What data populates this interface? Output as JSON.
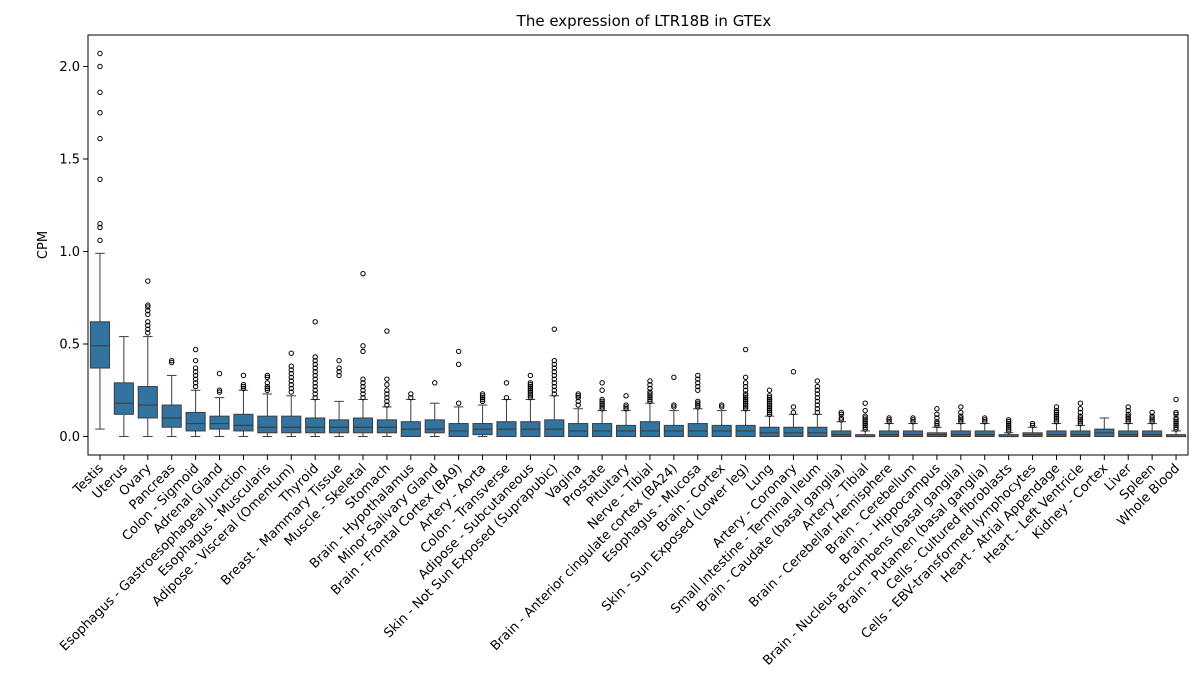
{
  "chart_data": {
    "type": "box",
    "title": "The expression of LTR18B in GTEx",
    "xlabel": "",
    "ylabel": "CPM",
    "ylim": [
      -0.1,
      2.17
    ],
    "yticks": [
      0.0,
      0.5,
      1.0,
      1.5,
      2.0
    ],
    "ytick_labels": [
      "0.0",
      "0.5",
      "1.0",
      "1.5",
      "2.0"
    ],
    "box_color": "#3274a1",
    "categories": [
      "Testis",
      "Uterus",
      "Ovary",
      "Pancreas",
      "Colon - Sigmoid",
      "Adrenal Gland",
      "Esophagus - Gastroesophageal Junction",
      "Esophagus - Muscularis",
      "Adipose - Visceral (Omentum)",
      "Thyroid",
      "Breast - Mammary Tissue",
      "Muscle - Skeletal",
      "Stomach",
      "Brain - Hypothalamus",
      "Minor Salivary Gland",
      "Brain - Frontal Cortex (BA9)",
      "Artery - Aorta",
      "Colon - Transverse",
      "Adipose - Subcutaneous",
      "Skin - Not Sun Exposed (Suprapubic)",
      "Vagina",
      "Prostate",
      "Pituitary",
      "Nerve - Tibial",
      "Brain - Anterior cingulate cortex (BA24)",
      "Esophagus - Mucosa",
      "Brain - Cortex",
      "Skin - Sun Exposed (Lower leg)",
      "Lung",
      "Artery - Coronary",
      "Small Intestine - Terminal Ileum",
      "Brain - Caudate (basal ganglia)",
      "Artery - Tibial",
      "Brain - Cerebellar Hemisphere",
      "Brain - Cerebellum",
      "Brain - Hippocampus",
      "Brain - Nucleus accumbens (basal ganglia)",
      "Brain - Putamen (basal ganglia)",
      "Cells - Cultured fibroblasts",
      "Cells - EBV-transformed lymphocytes",
      "Heart - Atrial Appendage",
      "Heart - Left Ventricle",
      "Kidney - Cortex",
      "Liver",
      "Spleen",
      "Whole Blood"
    ],
    "boxes": [
      {
        "q1": 0.37,
        "median": 0.49,
        "q3": 0.62,
        "whislo": 0.04,
        "whishi": 0.99,
        "fliers": [
          1.06,
          1.13,
          1.15,
          1.39,
          1.61,
          1.75,
          1.86,
          2.0,
          2.07
        ]
      },
      {
        "q1": 0.12,
        "median": 0.18,
        "q3": 0.29,
        "whislo": 0.0,
        "whishi": 0.54,
        "fliers": []
      },
      {
        "q1": 0.1,
        "median": 0.17,
        "q3": 0.27,
        "whislo": 0.0,
        "whishi": 0.54,
        "fliers": [
          0.56,
          0.58,
          0.6,
          0.62,
          0.66,
          0.68,
          0.7,
          0.71,
          0.84
        ]
      },
      {
        "q1": 0.05,
        "median": 0.1,
        "q3": 0.17,
        "whislo": 0.0,
        "whishi": 0.33,
        "fliers": [
          0.4,
          0.41
        ]
      },
      {
        "q1": 0.03,
        "median": 0.07,
        "q3": 0.13,
        "whislo": 0.0,
        "whishi": 0.25,
        "fliers": [
          0.27,
          0.29,
          0.31,
          0.33,
          0.35,
          0.37,
          0.41,
          0.47
        ]
      },
      {
        "q1": 0.04,
        "median": 0.07,
        "q3": 0.11,
        "whislo": 0.0,
        "whishi": 0.21,
        "fliers": [
          0.24,
          0.25,
          0.34
        ]
      },
      {
        "q1": 0.03,
        "median": 0.06,
        "q3": 0.12,
        "whislo": 0.0,
        "whishi": 0.25,
        "fliers": [
          0.26,
          0.27,
          0.28,
          0.33
        ]
      },
      {
        "q1": 0.02,
        "median": 0.05,
        "q3": 0.11,
        "whislo": 0.0,
        "whishi": 0.23,
        "fliers": [
          0.25,
          0.26,
          0.27,
          0.29,
          0.32,
          0.33
        ]
      },
      {
        "q1": 0.02,
        "median": 0.05,
        "q3": 0.11,
        "whislo": 0.0,
        "whishi": 0.22,
        "fliers": [
          0.24,
          0.26,
          0.28,
          0.3,
          0.32,
          0.34,
          0.36,
          0.38,
          0.45
        ]
      },
      {
        "q1": 0.02,
        "median": 0.05,
        "q3": 0.1,
        "whislo": 0.0,
        "whishi": 0.2,
        "fliers": [
          0.21,
          0.23,
          0.25,
          0.27,
          0.29,
          0.31,
          0.33,
          0.35,
          0.37,
          0.39,
          0.41,
          0.43,
          0.62
        ]
      },
      {
        "q1": 0.02,
        "median": 0.05,
        "q3": 0.09,
        "whislo": 0.0,
        "whishi": 0.19,
        "fliers": [
          0.33,
          0.35,
          0.37,
          0.41
        ]
      },
      {
        "q1": 0.02,
        "median": 0.05,
        "q3": 0.1,
        "whislo": 0.0,
        "whishi": 0.2,
        "fliers": [
          0.21,
          0.23,
          0.25,
          0.27,
          0.29,
          0.31,
          0.46,
          0.49,
          0.88
        ]
      },
      {
        "q1": 0.02,
        "median": 0.05,
        "q3": 0.09,
        "whislo": 0.0,
        "whishi": 0.16,
        "fliers": [
          0.17,
          0.19,
          0.21,
          0.23,
          0.25,
          0.28,
          0.31,
          0.57
        ]
      },
      {
        "q1": 0.0,
        "median": 0.04,
        "q3": 0.08,
        "whislo": 0.0,
        "whishi": 0.2,
        "fliers": [
          0.21,
          0.23
        ]
      },
      {
        "q1": 0.02,
        "median": 0.04,
        "q3": 0.09,
        "whislo": 0.0,
        "whishi": 0.18,
        "fliers": [
          0.29
        ]
      },
      {
        "q1": 0.0,
        "median": 0.03,
        "q3": 0.07,
        "whislo": 0.0,
        "whishi": 0.16,
        "fliers": [
          0.18,
          0.39,
          0.46
        ]
      },
      {
        "q1": 0.01,
        "median": 0.04,
        "q3": 0.07,
        "whislo": 0.0,
        "whishi": 0.17,
        "fliers": [
          0.19,
          0.2,
          0.21,
          0.22,
          0.23
        ]
      },
      {
        "q1": 0.0,
        "median": 0.04,
        "q3": 0.08,
        "whislo": 0.0,
        "whishi": 0.2,
        "fliers": [
          0.21,
          0.29
        ]
      },
      {
        "q1": 0.0,
        "median": 0.04,
        "q3": 0.08,
        "whislo": 0.0,
        "whishi": 0.2,
        "fliers": [
          0.21,
          0.22,
          0.23,
          0.24,
          0.25,
          0.26,
          0.27,
          0.28,
          0.29,
          0.33
        ]
      },
      {
        "q1": 0.0,
        "median": 0.04,
        "q3": 0.09,
        "whislo": 0.0,
        "whishi": 0.22,
        "fliers": [
          0.23,
          0.25,
          0.27,
          0.29,
          0.31,
          0.33,
          0.35,
          0.37,
          0.39,
          0.41,
          0.58
        ]
      },
      {
        "q1": 0.0,
        "median": 0.03,
        "q3": 0.07,
        "whislo": 0.0,
        "whishi": 0.15,
        "fliers": [
          0.17,
          0.19,
          0.21,
          0.22,
          0.23
        ]
      },
      {
        "q1": 0.0,
        "median": 0.03,
        "q3": 0.07,
        "whislo": 0.0,
        "whishi": 0.14,
        "fliers": [
          0.15,
          0.16,
          0.17,
          0.18,
          0.19,
          0.2,
          0.25,
          0.29
        ]
      },
      {
        "q1": 0.0,
        "median": 0.03,
        "q3": 0.06,
        "whislo": 0.0,
        "whishi": 0.14,
        "fliers": [
          0.15,
          0.16,
          0.17,
          0.22
        ]
      },
      {
        "q1": 0.0,
        "median": 0.03,
        "q3": 0.08,
        "whislo": 0.0,
        "whishi": 0.18,
        "fliers": [
          0.19,
          0.2,
          0.21,
          0.22,
          0.23,
          0.24,
          0.26,
          0.28,
          0.3
        ]
      },
      {
        "q1": 0.0,
        "median": 0.03,
        "q3": 0.06,
        "whislo": 0.0,
        "whishi": 0.14,
        "fliers": [
          0.16,
          0.17,
          0.32
        ]
      },
      {
        "q1": 0.0,
        "median": 0.03,
        "q3": 0.07,
        "whislo": 0.0,
        "whishi": 0.15,
        "fliers": [
          0.16,
          0.17,
          0.18,
          0.19,
          0.25,
          0.27,
          0.29,
          0.31,
          0.33
        ]
      },
      {
        "q1": 0.0,
        "median": 0.03,
        "q3": 0.06,
        "whislo": 0.0,
        "whishi": 0.14,
        "fliers": [
          0.16,
          0.17
        ]
      },
      {
        "q1": 0.0,
        "median": 0.03,
        "q3": 0.06,
        "whislo": 0.0,
        "whishi": 0.14,
        "fliers": [
          0.15,
          0.16,
          0.17,
          0.18,
          0.19,
          0.2,
          0.21,
          0.22,
          0.23,
          0.25,
          0.27,
          0.29,
          0.32,
          0.47
        ]
      },
      {
        "q1": 0.0,
        "median": 0.02,
        "q3": 0.05,
        "whislo": 0.0,
        "whishi": 0.11,
        "fliers": [
          0.12,
          0.13,
          0.14,
          0.15,
          0.16,
          0.17,
          0.18,
          0.19,
          0.2,
          0.21,
          0.22,
          0.25
        ]
      },
      {
        "q1": 0.0,
        "median": 0.02,
        "q3": 0.05,
        "whislo": 0.0,
        "whishi": 0.12,
        "fliers": [
          0.13,
          0.16,
          0.35
        ]
      },
      {
        "q1": 0.0,
        "median": 0.02,
        "q3": 0.05,
        "whislo": 0.0,
        "whishi": 0.12,
        "fliers": [
          0.13,
          0.15,
          0.17,
          0.19,
          0.21,
          0.23,
          0.25,
          0.27,
          0.3
        ]
      },
      {
        "q1": 0.0,
        "median": 0.01,
        "q3": 0.03,
        "whislo": 0.0,
        "whishi": 0.08,
        "fliers": [
          0.09,
          0.1,
          0.12,
          0.13
        ]
      },
      {
        "q1": 0.0,
        "median": 0.0,
        "q3": 0.01,
        "whislo": 0.0,
        "whishi": 0.03,
        "fliers": [
          0.04,
          0.05,
          0.06,
          0.07,
          0.08,
          0.09,
          0.1,
          0.11,
          0.14,
          0.18
        ]
      },
      {
        "q1": 0.0,
        "median": 0.01,
        "q3": 0.03,
        "whislo": 0.0,
        "whishi": 0.07,
        "fliers": [
          0.08,
          0.09,
          0.1
        ]
      },
      {
        "q1": 0.0,
        "median": 0.01,
        "q3": 0.03,
        "whislo": 0.0,
        "whishi": 0.07,
        "fliers": [
          0.08,
          0.09,
          0.1
        ]
      },
      {
        "q1": 0.0,
        "median": 0.01,
        "q3": 0.02,
        "whislo": 0.0,
        "whishi": 0.05,
        "fliers": [
          0.06,
          0.07,
          0.08,
          0.1,
          0.12,
          0.15
        ]
      },
      {
        "q1": 0.0,
        "median": 0.01,
        "q3": 0.03,
        "whislo": 0.0,
        "whishi": 0.07,
        "fliers": [
          0.08,
          0.09,
          0.1,
          0.11,
          0.13,
          0.16
        ]
      },
      {
        "q1": 0.0,
        "median": 0.01,
        "q3": 0.03,
        "whislo": 0.0,
        "whishi": 0.07,
        "fliers": [
          0.08,
          0.09,
          0.1
        ]
      },
      {
        "q1": 0.0,
        "median": 0.0,
        "q3": 0.01,
        "whislo": 0.0,
        "whishi": 0.02,
        "fliers": [
          0.03,
          0.04,
          0.05,
          0.06,
          0.07,
          0.08,
          0.09
        ]
      },
      {
        "q1": 0.0,
        "median": 0.01,
        "q3": 0.02,
        "whislo": 0.0,
        "whishi": 0.05,
        "fliers": [
          0.06,
          0.07
        ]
      },
      {
        "q1": 0.0,
        "median": 0.01,
        "q3": 0.03,
        "whislo": 0.0,
        "whishi": 0.07,
        "fliers": [
          0.08,
          0.09,
          0.1,
          0.11,
          0.12,
          0.13,
          0.14,
          0.16
        ]
      },
      {
        "q1": 0.0,
        "median": 0.01,
        "q3": 0.03,
        "whislo": 0.0,
        "whishi": 0.06,
        "fliers": [
          0.07,
          0.08,
          0.09,
          0.1,
          0.11,
          0.13,
          0.15,
          0.18
        ]
      },
      {
        "q1": 0.0,
        "median": 0.02,
        "q3": 0.04,
        "whislo": 0.0,
        "whishi": 0.1,
        "fliers": []
      },
      {
        "q1": 0.0,
        "median": 0.01,
        "q3": 0.03,
        "whislo": 0.0,
        "whishi": 0.07,
        "fliers": [
          0.08,
          0.09,
          0.1,
          0.11,
          0.12,
          0.14,
          0.16
        ]
      },
      {
        "q1": 0.0,
        "median": 0.01,
        "q3": 0.03,
        "whislo": 0.0,
        "whishi": 0.07,
        "fliers": [
          0.08,
          0.09,
          0.1,
          0.11,
          0.13
        ]
      },
      {
        "q1": 0.0,
        "median": 0.0,
        "q3": 0.01,
        "whislo": 0.0,
        "whishi": 0.03,
        "fliers": [
          0.04,
          0.05,
          0.06,
          0.07,
          0.08,
          0.09,
          0.1,
          0.12,
          0.13,
          0.2
        ]
      }
    ]
  }
}
